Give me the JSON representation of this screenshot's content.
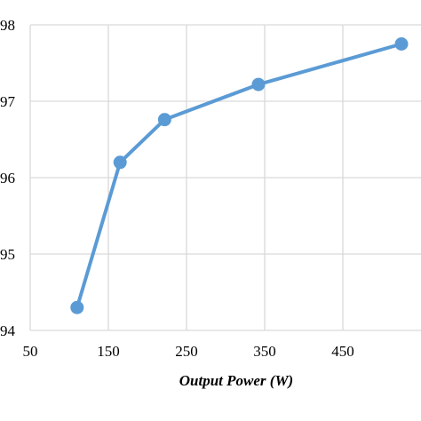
{
  "chart_data": {
    "type": "line",
    "xlabel": "Output Power (W)",
    "ylabel": "",
    "xlim": [
      50,
      550
    ],
    "ylim": [
      94,
      98
    ],
    "x_ticks": [
      50,
      150,
      250,
      350,
      450
    ],
    "y_ticks": [
      94,
      95,
      96,
      97,
      98
    ],
    "y_tick_labels": [
      "94",
      "95",
      "96",
      "97",
      "98"
    ],
    "grid": true,
    "series": [
      {
        "color": "#5b9bd5",
        "x": [
          110,
          165,
          222,
          342,
          525
        ],
        "y": [
          94.3,
          96.2,
          96.76,
          97.22,
          97.75
        ]
      }
    ]
  }
}
